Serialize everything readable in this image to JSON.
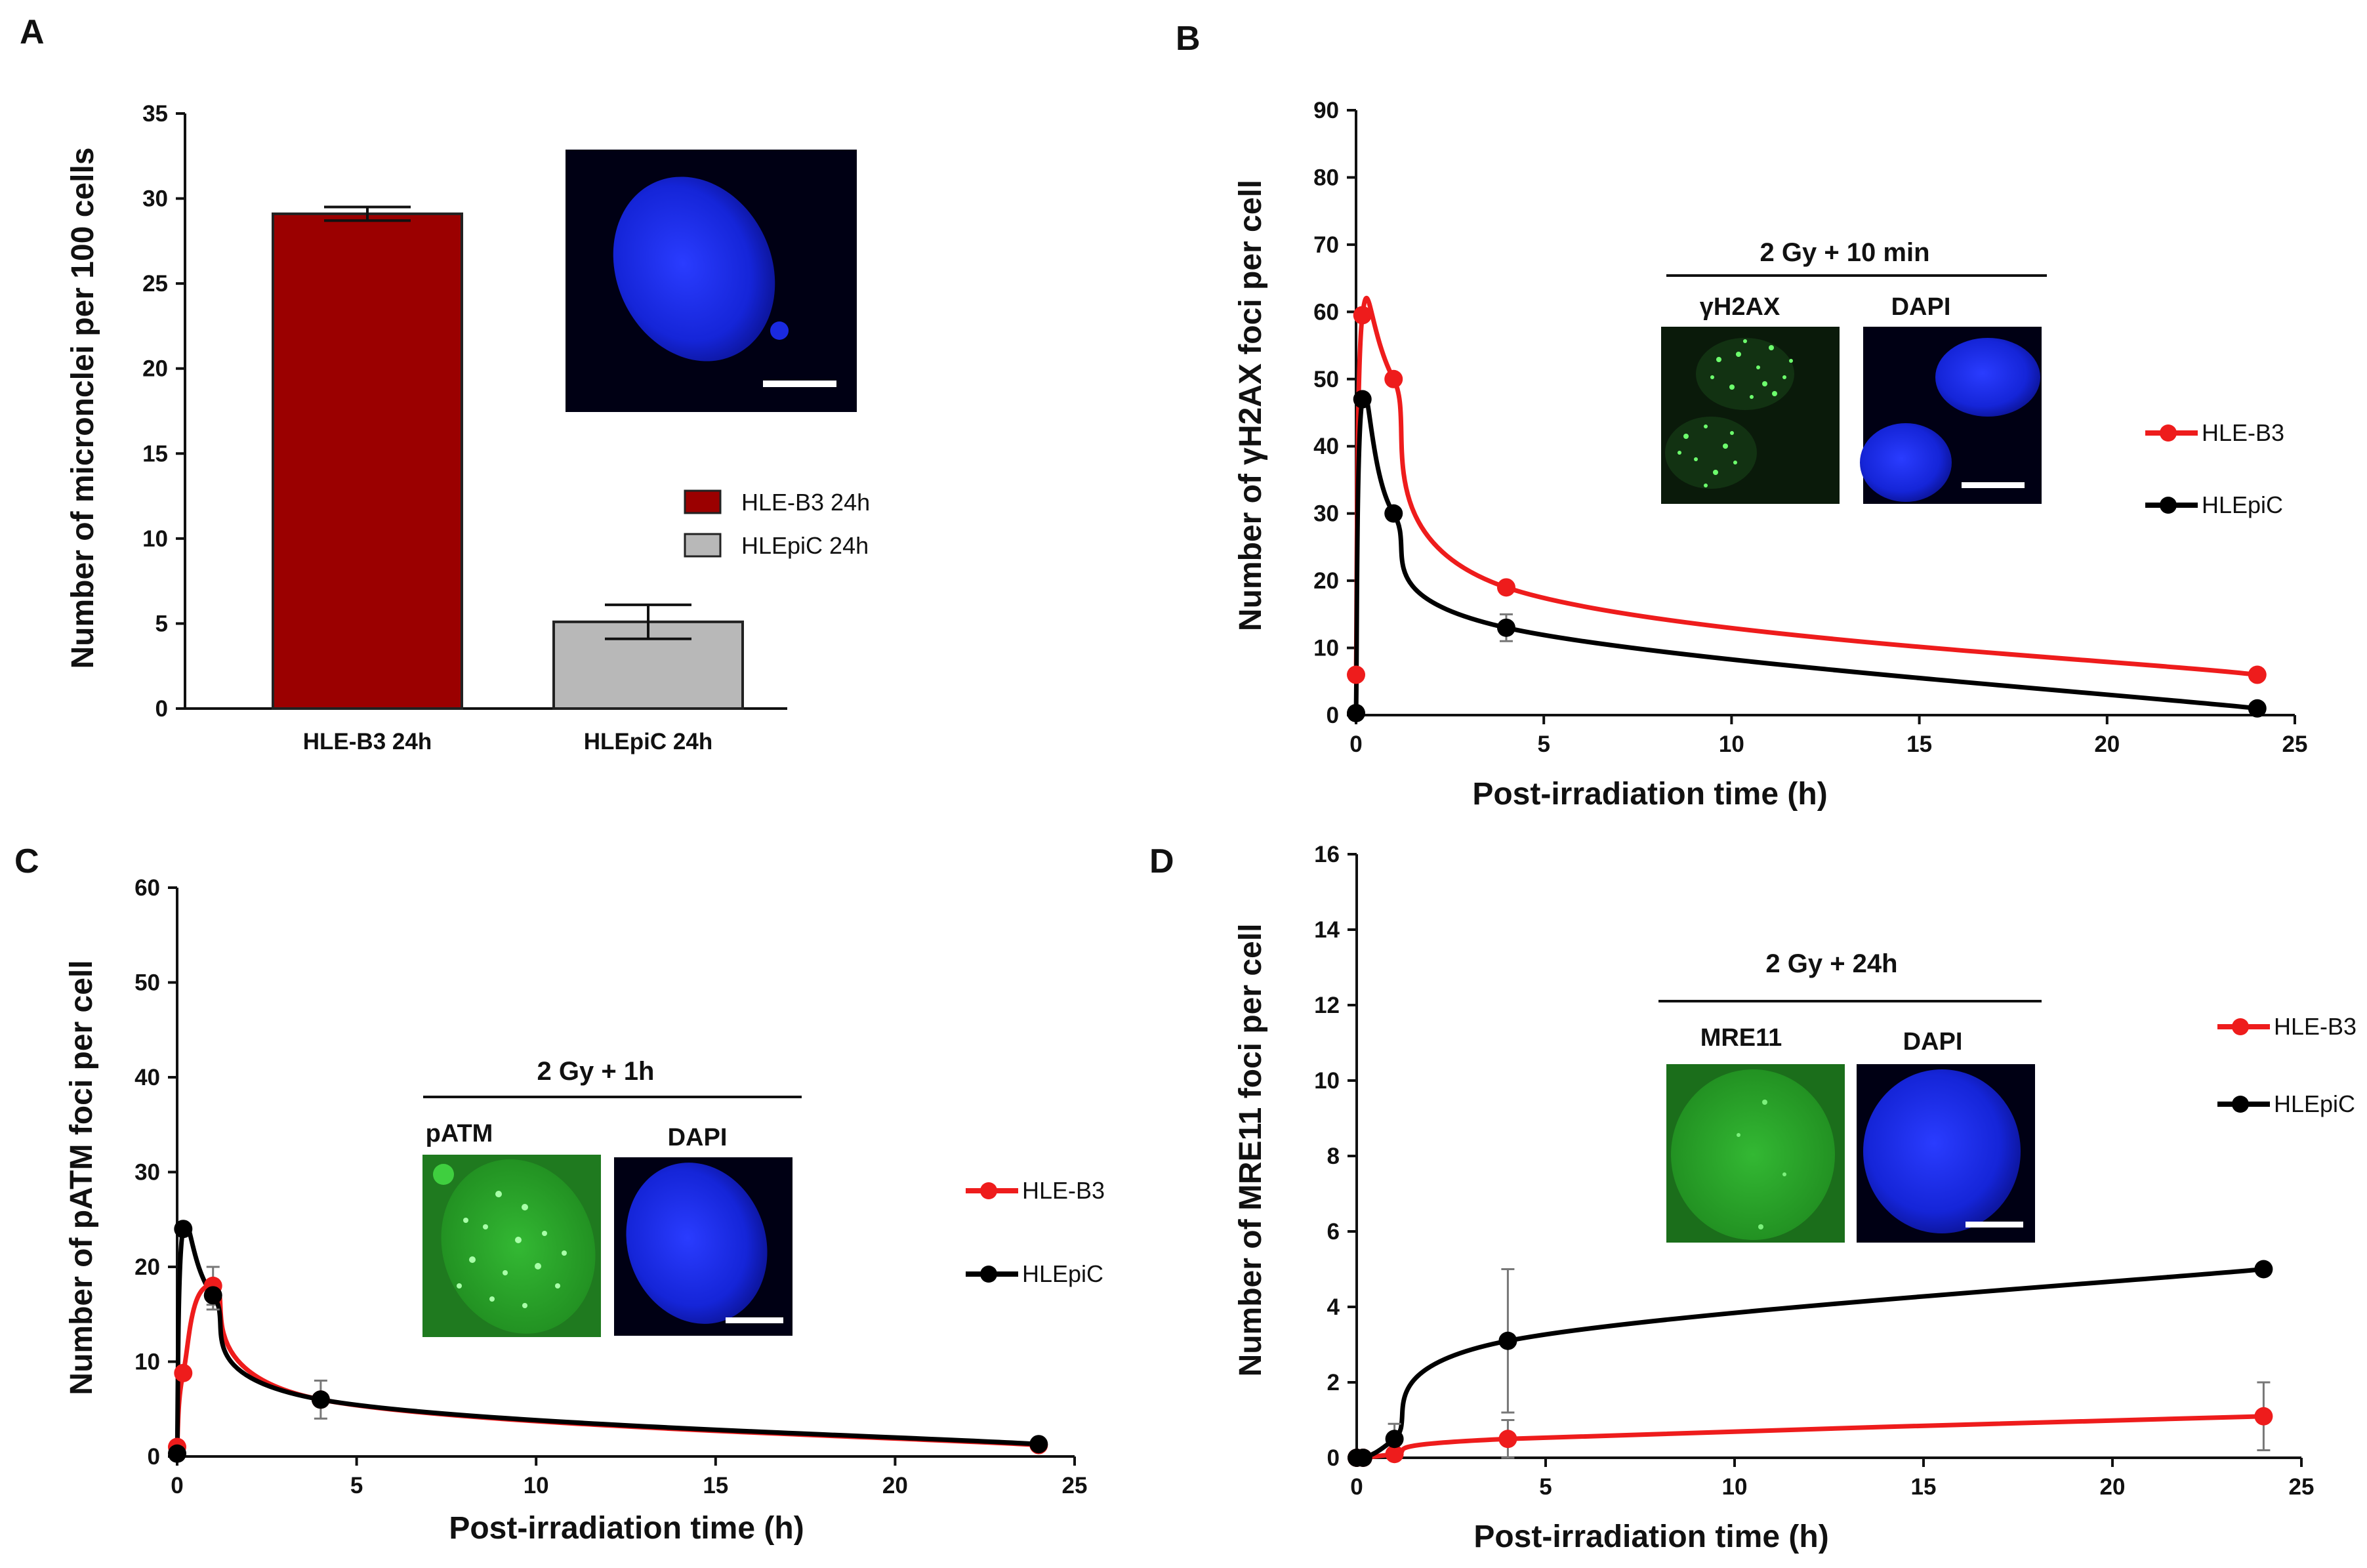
{
  "figure": {
    "panels": [
      "A",
      "B",
      "C",
      "D"
    ]
  },
  "chart_data": [
    {
      "id": "A",
      "type": "bar",
      "ylabel": "Number of micronclei per 100 cells",
      "xlabel": "",
      "ylim": [
        0,
        35
      ],
      "yticks": [
        0,
        5,
        10,
        15,
        20,
        25,
        30,
        35
      ],
      "categories": [
        "HLE-B3 24h",
        "HLEpiC 24h"
      ],
      "values": [
        29.1,
        5.1
      ],
      "errors": [
        0.4,
        1.0
      ],
      "colors": [
        "#9b0000",
        "#b8b8b8"
      ],
      "legend": [
        "HLE-B3 24h",
        "HLEpiC 24h"
      ]
    },
    {
      "id": "B",
      "type": "line",
      "ylabel": "Number of γH2AX foci per cell",
      "xlabel": "Post-irradiation time (h)",
      "xlim": [
        0,
        25
      ],
      "ylim": [
        0,
        90
      ],
      "xticks": [
        0,
        5,
        10,
        15,
        20,
        25
      ],
      "yticks": [
        0,
        10,
        20,
        30,
        40,
        50,
        60,
        70,
        80,
        90
      ],
      "series": [
        {
          "name": "HLE-B3",
          "color": "#ee1c1c",
          "x": [
            0,
            0.17,
            1,
            4,
            24
          ],
          "y": [
            6,
            59.5,
            50,
            19,
            6
          ],
          "err": [
            0,
            0,
            0,
            0,
            0
          ]
        },
        {
          "name": "HLEpiC",
          "color": "#000000",
          "x": [
            0,
            0.17,
            1,
            4,
            24
          ],
          "y": [
            0.3,
            47,
            30,
            13,
            1
          ],
          "err": [
            0,
            0,
            0,
            2,
            0
          ]
        }
      ],
      "inset": {
        "title": "2 Gy + 10 min",
        "labels": [
          "γH2AX",
          "DAPI"
        ]
      }
    },
    {
      "id": "C",
      "type": "line",
      "ylabel": "Number of pATM foci per cell",
      "xlabel": "Post-irradiation time (h)",
      "xlim": [
        0,
        25
      ],
      "ylim": [
        0,
        60
      ],
      "xticks": [
        0,
        5,
        10,
        15,
        20,
        25
      ],
      "yticks": [
        0,
        10,
        20,
        30,
        40,
        50,
        60
      ],
      "series": [
        {
          "name": "HLE-B3",
          "color": "#ee1c1c",
          "x": [
            0,
            0.17,
            1,
            4,
            24
          ],
          "y": [
            1,
            8.8,
            18,
            6,
            1.2
          ],
          "err": [
            0,
            0,
            2,
            0,
            0
          ]
        },
        {
          "name": "HLEpiC",
          "color": "#000000",
          "x": [
            0,
            0.17,
            1,
            4,
            24
          ],
          "y": [
            0.3,
            24,
            17,
            6,
            1.3
          ],
          "err": [
            0,
            0,
            1.5,
            2,
            0
          ]
        }
      ],
      "inset": {
        "title": "2 Gy + 1h",
        "labels": [
          "pATM",
          "DAPI"
        ]
      }
    },
    {
      "id": "D",
      "type": "line",
      "ylabel": "Number of MRE11 foci per cell",
      "xlabel": "Post-irradiation time (h)",
      "xlim": [
        0,
        25
      ],
      "ylim": [
        0,
        16
      ],
      "xticks": [
        0,
        5,
        10,
        15,
        20,
        25
      ],
      "yticks": [
        0,
        2,
        4,
        6,
        8,
        10,
        12,
        14,
        16
      ],
      "series": [
        {
          "name": "HLE-B3",
          "color": "#ee1c1c",
          "x": [
            0,
            0.17,
            1,
            4,
            24
          ],
          "y": [
            0,
            0,
            0.1,
            0.5,
            1.1
          ],
          "err": [
            0,
            0,
            0,
            0.5,
            0.9
          ]
        },
        {
          "name": "HLEpiC",
          "color": "#000000",
          "x": [
            0,
            0.17,
            1,
            4,
            24
          ],
          "y": [
            0,
            0,
            0.5,
            3.1,
            5
          ],
          "err": [
            0,
            0,
            0.4,
            1.9,
            0
          ]
        }
      ],
      "inset": {
        "title": "2 Gy + 24h",
        "labels": [
          "MRE11",
          "DAPI"
        ]
      }
    }
  ]
}
